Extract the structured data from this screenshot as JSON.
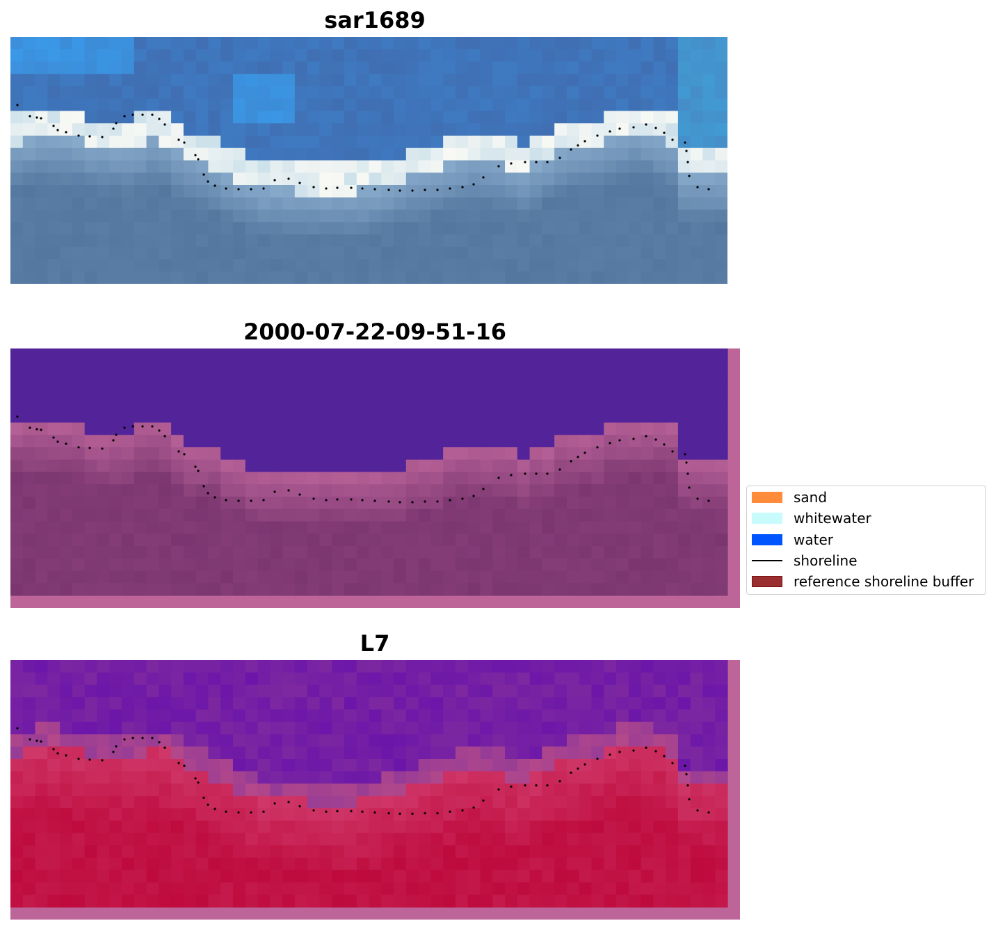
{
  "panels": [
    {
      "title": "sar1689"
    },
    {
      "title": "2000-07-22-09-51-16"
    },
    {
      "title": "L7"
    }
  ],
  "legend": {
    "items": [
      {
        "label": "sand",
        "kind": "patch",
        "color": "#ff8c3a"
      },
      {
        "label": "whitewater",
        "kind": "patch",
        "color": "#c8fcfc"
      },
      {
        "label": "water",
        "kind": "patch",
        "color": "#0055ff"
      },
      {
        "label": "shoreline",
        "kind": "line",
        "color": "#000000"
      },
      {
        "label": "reference shoreline buffer",
        "kind": "patch",
        "color": "#9b2f2f",
        "edge": "#7a1010"
      }
    ]
  },
  "colors": {
    "buffer": "#bd6598",
    "shoreline": "#000000",
    "classified_water": "#532499"
  }
}
